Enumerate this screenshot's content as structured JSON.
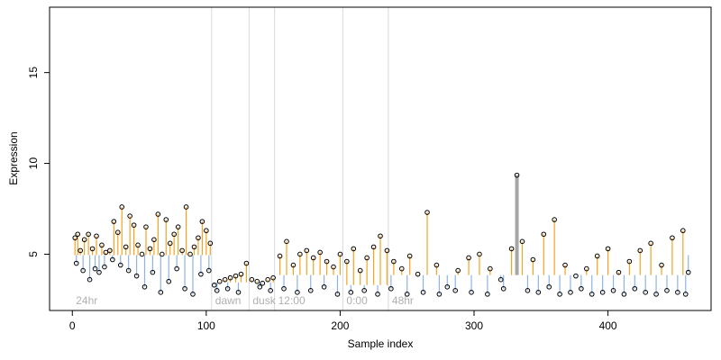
{
  "chart_data": {
    "type": "scatter",
    "title": "",
    "xlabel": "Sample index",
    "ylabel": "Expression",
    "xlim": [
      -17,
      477
    ],
    "ylim": [
      1.9,
      18.6
    ],
    "xticks": [
      0,
      100,
      200,
      300,
      400
    ],
    "yticks": [
      5,
      10,
      15
    ],
    "baseline_default": 4.95,
    "segments": [
      {
        "label": "24hr",
        "start": 0,
        "end": 104,
        "baseline": 4.95
      },
      {
        "label": "dawn",
        "start": 104,
        "end": 132,
        "baseline": 3.45
      },
      {
        "label": "dusk",
        "start": 132,
        "end": 151,
        "baseline": 3.45
      },
      {
        "label": "12:00",
        "start": 151,
        "end": 202,
        "baseline": 3.85
      },
      {
        "label": "0:00",
        "start": 202,
        "end": 236,
        "baseline": 3.3
      },
      {
        "label": "48hr",
        "start": 236,
        "end": 460,
        "baseline": 3.85
      }
    ],
    "colors": {
      "above": "#f2a422",
      "below": "#8fb4e3",
      "highlight": "#a6a6a6",
      "point_stroke": "#000000",
      "separator": "#d9d9d9"
    },
    "highlight_point": {
      "x": 332,
      "y": 9.35
    },
    "series": [
      {
        "x": [
          2,
          4,
          6,
          9,
          12,
          15,
          18,
          22,
          25,
          28,
          31,
          34,
          37,
          40,
          43,
          46,
          49,
          52,
          55,
          58,
          61,
          64,
          67,
          70,
          73,
          76,
          79,
          82,
          85,
          88,
          91,
          94,
          97,
          100,
          103,
          3,
          8,
          13,
          17,
          20,
          24,
          30,
          36,
          42,
          48,
          54,
          60,
          66,
          72,
          78,
          84,
          90,
          96,
          102
        ],
        "y": [
          5.9,
          6.1,
          5.2,
          5.8,
          6.1,
          5.3,
          6.0,
          5.5,
          5.1,
          5.2,
          6.8,
          6.2,
          7.6,
          5.4,
          7.1,
          6.6,
          5.5,
          5.0,
          6.5,
          5.3,
          5.8,
          7.2,
          5.0,
          6.9,
          5.6,
          6.1,
          6.5,
          5.2,
          7.6,
          5.0,
          5.4,
          5.9,
          6.8,
          6.3,
          5.6,
          4.5,
          4.1,
          3.6,
          4.2,
          4.0,
          4.3,
          4.7,
          4.4,
          4.1,
          3.8,
          3.2,
          4.0,
          2.9,
          3.5,
          4.2,
          3.1,
          2.8,
          3.9,
          4.1
        ]
      },
      {
        "x": [
          106,
          110,
          114,
          118,
          122,
          126,
          130,
          134,
          138,
          142,
          146,
          150,
          155,
          160,
          165,
          170,
          175,
          180,
          185,
          190,
          195,
          200,
          205,
          210,
          215,
          220,
          225,
          230,
          235,
          240,
          246,
          252,
          258,
          265,
          272,
          280,
          288,
          296,
          304,
          312,
          320,
          328,
          336,
          344,
          352,
          360,
          368,
          376,
          384,
          392,
          400,
          408,
          416,
          424,
          432,
          440,
          448,
          456,
          460
        ],
        "y": [
          3.3,
          3.5,
          3.6,
          3.7,
          3.8,
          3.9,
          4.5,
          3.6,
          3.5,
          3.4,
          3.6,
          3.7,
          4.9,
          5.7,
          4.4,
          5.0,
          5.2,
          4.8,
          5.1,
          4.6,
          4.3,
          5.0,
          4.6,
          5.3,
          4.1,
          4.8,
          5.4,
          6.0,
          5.2,
          4.6,
          4.2,
          4.9,
          3.9,
          7.3,
          4.4,
          3.2,
          4.1,
          4.8,
          5.0,
          4.2,
          3.6,
          5.3,
          5.7,
          4.7,
          6.1,
          6.9,
          4.4,
          3.8,
          4.2,
          4.9,
          5.3,
          4.0,
          4.6,
          5.2,
          5.6,
          4.4,
          5.9,
          6.3,
          4.0
        ]
      },
      {
        "x": [
          108,
          116,
          124,
          140,
          148,
          158,
          168,
          178,
          188,
          198,
          208,
          218,
          228,
          238,
          250,
          262,
          274,
          286,
          298,
          310,
          322,
          340,
          348,
          356,
          364,
          372,
          380,
          388,
          396,
          404,
          412,
          420,
          428,
          436,
          444,
          452,
          458
        ],
        "y": [
          3.0,
          3.1,
          2.9,
          3.2,
          3.0,
          3.1,
          2.9,
          3.0,
          3.2,
          2.8,
          2.9,
          3.0,
          2.8,
          3.1,
          2.8,
          2.9,
          2.8,
          3.0,
          2.9,
          2.8,
          3.1,
          3.0,
          2.9,
          3.2,
          2.8,
          2.9,
          3.1,
          2.8,
          2.9,
          3.0,
          2.8,
          3.1,
          2.9,
          2.8,
          3.0,
          2.9,
          2.8
        ]
      }
    ]
  }
}
